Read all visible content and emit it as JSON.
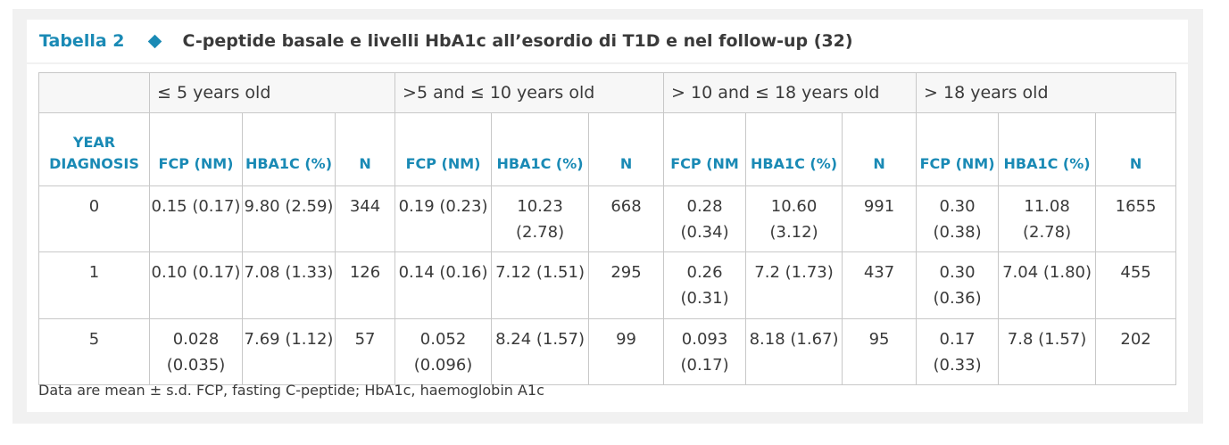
{
  "title": {
    "label": "Tabella 2",
    "text": "C-peptide basale e livelli HbA1c all’esordio di T1D e nel follow-up (32)"
  },
  "table": {
    "groups": [
      "≤ 5 years old",
      ">5 and ≤ 10 years old",
      "> 10 and ≤ 18 years old",
      "> 18 years old"
    ],
    "year_header": "YEAR DIAGNOSIS",
    "column_headers": [
      "FCP (NM)",
      "HBA1C (%)",
      "N",
      "FCP (NM)",
      "HBA1C (%)",
      "N",
      "FCP (NM",
      "HBA1C (%)",
      "N",
      "FCP (NM)",
      "HBA1C (%)",
      "N"
    ],
    "rows": [
      {
        "year": "0",
        "cells": [
          "0.15 (0.17)",
          "9.80 (2.59)",
          "344",
          "0.19 (0.23)",
          "10.23 (2.78)",
          "668",
          "0.28 (0.34)",
          "10.60 (3.12)",
          "991",
          "0.30 (0.38)",
          "11.08 (2.78)",
          "1655"
        ]
      },
      {
        "year": "1",
        "cells": [
          "0.10 (0.17)",
          "7.08 (1.33)",
          "126",
          "0.14 (0.16)",
          "7.12 (1.51)",
          "295",
          "0.26 (0.31)",
          "7.2 (1.73)",
          "437",
          "0.30 (0.36)",
          "7.04 (1.80)",
          "455"
        ]
      },
      {
        "year": "5",
        "cells": [
          "0.028 (0.035)",
          "7.69 (1.12)",
          "57",
          "0.052 (0.096)",
          "8.24 (1.57)",
          "99",
          "0.093 (0.17)",
          "8.18 (1.67)",
          "95",
          "0.17 (0.33)",
          "7.8 (1.57)",
          "202"
        ]
      }
    ]
  },
  "footnote": "Data are mean ± s.d. FCP, fasting C-peptide; HbA1c, haemoglobin A1c",
  "colors": {
    "accent": "#1a8ab5",
    "text": "#3a3a3a",
    "panel": "#f1f1f1",
    "border": "#c8c8c8"
  }
}
